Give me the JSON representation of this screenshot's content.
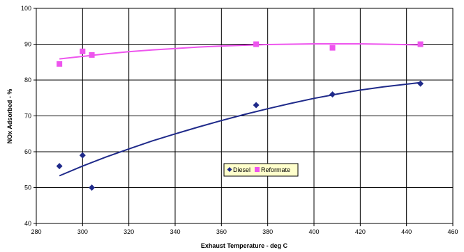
{
  "chart_data": {
    "type": "scatter",
    "title": "",
    "xlabel": "Exhaust Temperature - deg C",
    "ylabel": "NOx Adsorbed - %",
    "xlim": [
      280,
      460
    ],
    "ylim": [
      40,
      100
    ],
    "x_ticks": [
      280,
      300,
      320,
      340,
      360,
      380,
      400,
      420,
      440,
      460
    ],
    "y_ticks": [
      40,
      50,
      60,
      70,
      80,
      90,
      100
    ],
    "grid": true,
    "legend_position": "center",
    "series": [
      {
        "name": "Diesel",
        "color": "#1f2a8a",
        "marker": "diamond",
        "points": [
          [
            290,
            56
          ],
          [
            300,
            59
          ],
          [
            304,
            50
          ],
          [
            375,
            73
          ],
          [
            408,
            76
          ],
          [
            446,
            79
          ]
        ],
        "trendline": [
          [
            290,
            53.3
          ],
          [
            300,
            56.0
          ],
          [
            310,
            58.5
          ],
          [
            320,
            60.8
          ],
          [
            330,
            63.0
          ],
          [
            340,
            65.0
          ],
          [
            350,
            66.9
          ],
          [
            360,
            68.7
          ],
          [
            370,
            70.4
          ],
          [
            380,
            72.0
          ],
          [
            390,
            73.5
          ],
          [
            400,
            74.9
          ],
          [
            410,
            76.1
          ],
          [
            420,
            77.2
          ],
          [
            430,
            78.1
          ],
          [
            446,
            79.3
          ]
        ]
      },
      {
        "name": "Reformate",
        "color": "#ee55ee",
        "marker": "square",
        "points": [
          [
            290,
            84.5
          ],
          [
            300,
            88
          ],
          [
            304,
            87
          ],
          [
            375,
            90
          ],
          [
            408,
            89
          ],
          [
            446,
            90
          ]
        ],
        "trendline": [
          [
            290,
            85.9
          ],
          [
            300,
            86.6
          ],
          [
            310,
            87.3
          ],
          [
            320,
            87.9
          ],
          [
            330,
            88.4
          ],
          [
            340,
            88.8
          ],
          [
            350,
            89.2
          ],
          [
            360,
            89.5
          ],
          [
            370,
            89.7
          ],
          [
            380,
            89.9
          ],
          [
            390,
            90.0
          ],
          [
            400,
            90.1
          ],
          [
            410,
            90.1
          ],
          [
            420,
            90.1
          ],
          [
            430,
            90.0
          ],
          [
            446,
            89.8
          ]
        ]
      }
    ]
  }
}
